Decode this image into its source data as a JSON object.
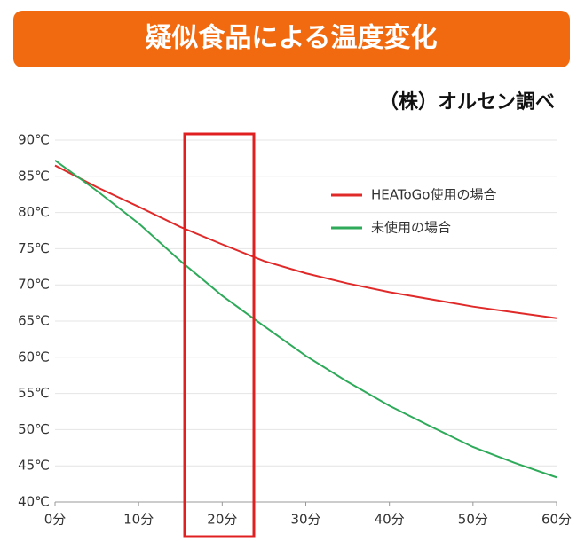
{
  "chart_data": {
    "type": "line",
    "title": "疑似食品による温度変化",
    "subtitle": "（株）オルセン調べ",
    "x": [
      0,
      5,
      10,
      15,
      20,
      25,
      30,
      35,
      40,
      45,
      50,
      55,
      60
    ],
    "series": [
      {
        "name": "HEAToGo使用の場合",
        "color": "#e02a2a",
        "values": [
          86.5,
          83.5,
          80.8,
          78,
          75.6,
          73.3,
          71.6,
          70.2,
          69,
          68,
          67,
          66.2,
          65.4
        ]
      },
      {
        "name": "未使用の場合",
        "color": "#2eaa5a",
        "values": [
          87.2,
          83,
          78.5,
          73.3,
          68.5,
          64.3,
          60.2,
          56.6,
          53.3,
          50.4,
          47.6,
          45.4,
          43.4
        ]
      }
    ],
    "xlim": [
      0,
      60
    ],
    "xticks": [
      {
        "value": 0,
        "label": "0分"
      },
      {
        "value": 10,
        "label": "10分"
      },
      {
        "value": 20,
        "label": "20分"
      },
      {
        "value": 30,
        "label": "30分"
      },
      {
        "value": 40,
        "label": "40分"
      },
      {
        "value": 50,
        "label": "50分"
      },
      {
        "value": 60,
        "label": "60分"
      }
    ],
    "ylim": [
      40,
      90
    ],
    "yticks": [
      {
        "value": 40,
        "label": "40℃"
      },
      {
        "value": 45,
        "label": "45℃"
      },
      {
        "value": 50,
        "label": "50℃"
      },
      {
        "value": 55,
        "label": "55℃"
      },
      {
        "value": 60,
        "label": "60℃"
      },
      {
        "value": 65,
        "label": "65℃"
      },
      {
        "value": 70,
        "label": "70℃"
      },
      {
        "value": 75,
        "label": "75℃"
      },
      {
        "value": 80,
        "label": "80℃"
      },
      {
        "value": 85,
        "label": "85℃"
      },
      {
        "value": 90,
        "label": "90℃"
      }
    ],
    "grid": true,
    "legend": "upper-right"
  }
}
